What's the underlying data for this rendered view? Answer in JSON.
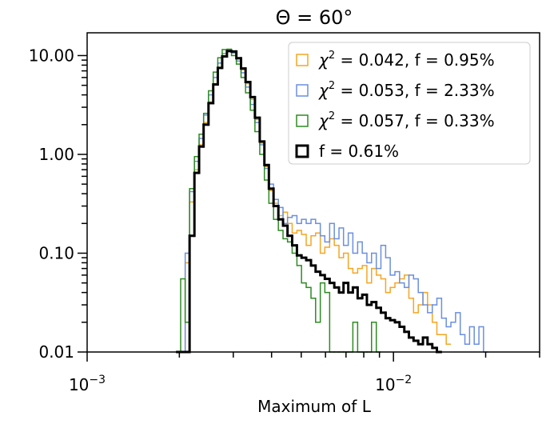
{
  "chart_data": {
    "type": "step-histogram",
    "title": "Θ = 60°",
    "xlabel": "Maximum of L",
    "ylabel": "",
    "xscale": "log",
    "yscale": "log",
    "xlim": [
      0.001,
      0.03
    ],
    "ylim": [
      0.01,
      17.0
    ],
    "x_tick_labels": [
      {
        "value": 0.001,
        "base": "10",
        "exp": "−3"
      },
      {
        "value": 0.01,
        "base": "10",
        "exp": "−2"
      }
    ],
    "y_ticks": [
      {
        "value": 0.01,
        "label": "0.01"
      },
      {
        "value": 0.1,
        "label": "0.10"
      },
      {
        "value": 1,
        "label": "1.00"
      },
      {
        "value": 10,
        "label": "10.00"
      }
    ],
    "legend_position": "top-right",
    "series": [
      {
        "name": "chi2_0.042",
        "legend_sym": "χ",
        "legend_text": " = 0.042, f = 0.95%",
        "color": "#f5a623",
        "bold": false,
        "x": [
          0.00195,
          0.00202,
          0.00209,
          0.00216,
          0.00224,
          0.00232,
          0.0024,
          0.00249,
          0.00258,
          0.00267,
          0.00276,
          0.00286,
          0.00296,
          0.00307,
          0.00318,
          0.00329,
          0.00341,
          0.00353,
          0.00366,
          0.00379,
          0.00392,
          0.00406,
          0.00421,
          0.00436,
          0.00451,
          0.00467,
          0.00484,
          0.00501,
          0.00519,
          0.00538,
          0.00557,
          0.00577,
          0.00597,
          0.00619,
          0.00641,
          0.00664,
          0.00687,
          0.00712,
          0.00737,
          0.00764,
          0.00791,
          0.00819,
          0.00848,
          0.00879,
          0.0091,
          0.00943,
          0.00976,
          0.01011,
          0.01047,
          0.01085,
          0.01123,
          0.01163,
          0.01205,
          0.01248,
          0.01292,
          0.01339,
          0.01386,
          0.01436,
          0.01487,
          0.0154
        ],
        "y": [
          0.01,
          0.01,
          0.08,
          0.33,
          0.7,
          1.25,
          2.1,
          3.4,
          5.2,
          7.6,
          10.0,
          11.2,
          11.0,
          9.3,
          7.2,
          5.2,
          3.6,
          2.25,
          1.3,
          0.75,
          0.43,
          0.32,
          0.24,
          0.26,
          0.2,
          0.16,
          0.17,
          0.155,
          0.12,
          0.15,
          0.16,
          0.1,
          0.115,
          0.14,
          0.12,
          0.09,
          0.1,
          0.07,
          0.063,
          0.07,
          0.075,
          0.05,
          0.07,
          0.06,
          0.055,
          0.04,
          0.045,
          0.05,
          0.055,
          0.06,
          0.035,
          0.025,
          0.03,
          0.04,
          0.03,
          0.02,
          0.015,
          0.015,
          0.012,
          0.01
        ]
      },
      {
        "name": "chi2_0.053",
        "legend_sym": "χ",
        "legend_text": " = 0.053, f = 2.33%",
        "color": "#6b8fe0",
        "bold": false,
        "x": [
          0.00195,
          0.00202,
          0.00209,
          0.00216,
          0.00224,
          0.00232,
          0.0024,
          0.00249,
          0.00258,
          0.00267,
          0.00276,
          0.00286,
          0.00296,
          0.00307,
          0.00318,
          0.00329,
          0.00341,
          0.00353,
          0.00366,
          0.00379,
          0.00392,
          0.00406,
          0.00421,
          0.00436,
          0.00451,
          0.00467,
          0.00484,
          0.00501,
          0.00519,
          0.00538,
          0.00557,
          0.00577,
          0.00597,
          0.00619,
          0.00641,
          0.00664,
          0.00687,
          0.00712,
          0.00737,
          0.00764,
          0.00791,
          0.00819,
          0.00848,
          0.00879,
          0.0091,
          0.00943,
          0.00976,
          0.01011,
          0.01047,
          0.01085,
          0.01123,
          0.01163,
          0.01205,
          0.01248,
          0.01292,
          0.01339,
          0.01386,
          0.01436,
          0.01487,
          0.0154,
          0.01595,
          0.01652,
          0.01711,
          0.01772,
          0.01835,
          0.01901,
          0.01968,
          0.02039
        ],
        "y": [
          0.01,
          0.01,
          0.1,
          0.42,
          0.85,
          1.45,
          2.5,
          4.0,
          6.0,
          8.4,
          10.5,
          11.3,
          10.6,
          8.8,
          6.7,
          4.8,
          3.2,
          2.1,
          1.25,
          0.72,
          0.5,
          0.35,
          0.29,
          0.2,
          0.23,
          0.24,
          0.2,
          0.22,
          0.2,
          0.22,
          0.2,
          0.15,
          0.13,
          0.2,
          0.14,
          0.18,
          0.12,
          0.16,
          0.1,
          0.13,
          0.1,
          0.08,
          0.1,
          0.07,
          0.12,
          0.09,
          0.06,
          0.065,
          0.05,
          0.045,
          0.06,
          0.055,
          0.04,
          0.03,
          0.025,
          0.03,
          0.035,
          0.022,
          0.018,
          0.02,
          0.025,
          0.015,
          0.012,
          0.018,
          0.012,
          0.018,
          0.01,
          0.01
        ]
      },
      {
        "name": "chi2_0.057",
        "legend_sym": "χ",
        "legend_text": " = 0.057, f = 0.33%",
        "color": "#2e8b22",
        "bold": false,
        "x": [
          0.00195,
          0.00202,
          0.00209,
          0.00216,
          0.00224,
          0.00232,
          0.0024,
          0.00249,
          0.00258,
          0.00267,
          0.00276,
          0.00286,
          0.00296,
          0.00307,
          0.00318,
          0.00329,
          0.00341,
          0.00353,
          0.00366,
          0.00379,
          0.00392,
          0.00406,
          0.00421,
          0.00436,
          0.00451,
          0.00467,
          0.00484,
          0.00501,
          0.00519,
          0.00538,
          0.00557,
          0.00577,
          0.00597,
          0.00619,
          0.00641,
          0.00664,
          0.00687,
          0.00712,
          0.00737,
          0.00764,
          0.00791,
          0.00819,
          0.00848,
          0.00879,
          0.0091
        ],
        "y": [
          0.01,
          0.055,
          0.02,
          0.45,
          0.95,
          1.6,
          2.6,
          4.4,
          6.8,
          9.5,
          11.5,
          11.6,
          10.0,
          8.2,
          6.0,
          4.2,
          2.8,
          1.7,
          1.0,
          0.55,
          0.32,
          0.22,
          0.17,
          0.14,
          0.13,
          0.1,
          0.075,
          0.05,
          0.045,
          0.035,
          0.02,
          0.05,
          0.04,
          0.01,
          0.01,
          0.01,
          0.01,
          0.01,
          0.02,
          0.01,
          0.01,
          0.01,
          0.02,
          0.01,
          0.01
        ]
      },
      {
        "name": "f_0.61",
        "legend_sym": "",
        "legend_text": "f = 0.61%",
        "color": "#000000",
        "bold": true,
        "x": [
          0.00195,
          0.00202,
          0.00209,
          0.00216,
          0.00224,
          0.00232,
          0.0024,
          0.00249,
          0.00258,
          0.00267,
          0.00276,
          0.00286,
          0.00296,
          0.00307,
          0.00318,
          0.00329,
          0.00341,
          0.00353,
          0.00366,
          0.00379,
          0.00392,
          0.00406,
          0.00421,
          0.00436,
          0.00451,
          0.00467,
          0.00484,
          0.00501,
          0.00519,
          0.00538,
          0.00557,
          0.00577,
          0.00597,
          0.00619,
          0.00641,
          0.00664,
          0.00687,
          0.00712,
          0.00737,
          0.00764,
          0.00791,
          0.00819,
          0.00848,
          0.00879,
          0.0091,
          0.00943,
          0.00976,
          0.01011,
          0.01047,
          0.01085,
          0.01123,
          0.01163,
          0.01205,
          0.01248,
          0.01292,
          0.01339,
          0.01386,
          0.0144
        ],
        "y": [
          0.01,
          0.01,
          0.01,
          0.15,
          0.65,
          1.2,
          2.0,
          3.3,
          5.1,
          7.5,
          9.8,
          11.1,
          11.0,
          9.4,
          7.4,
          5.4,
          3.8,
          2.35,
          1.35,
          0.78,
          0.45,
          0.3,
          0.22,
          0.19,
          0.15,
          0.12,
          0.095,
          0.09,
          0.085,
          0.075,
          0.065,
          0.06,
          0.055,
          0.05,
          0.045,
          0.04,
          0.05,
          0.04,
          0.045,
          0.035,
          0.038,
          0.03,
          0.032,
          0.028,
          0.025,
          0.022,
          0.021,
          0.02,
          0.018,
          0.016,
          0.014,
          0.013,
          0.012,
          0.014,
          0.012,
          0.011,
          0.01,
          0.01
        ]
      }
    ]
  }
}
